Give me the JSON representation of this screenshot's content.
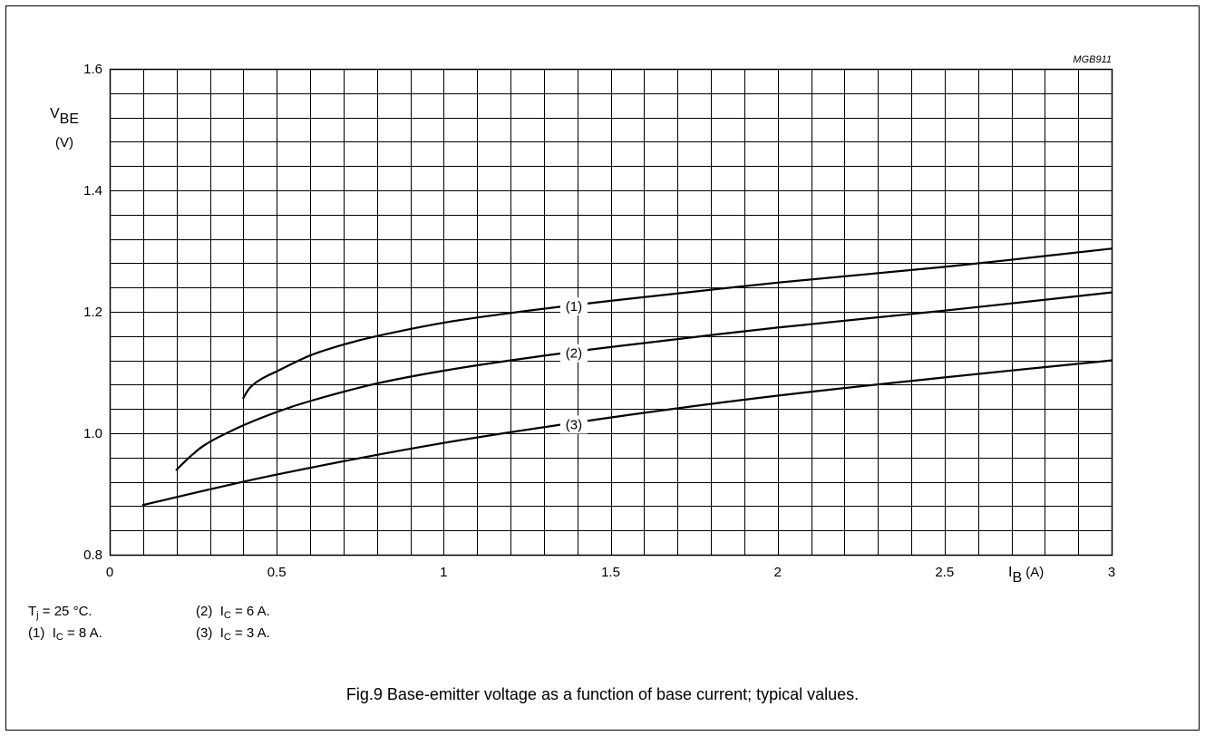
{
  "chart_data": {
    "type": "line",
    "figure_id": "MGB911",
    "x_axis": {
      "label_main": "I",
      "label_sub": "B",
      "label_unit": "(A)",
      "range": [
        0,
        3
      ],
      "ticks": [
        "0",
        "0.5",
        "1",
        "1.5",
        "2",
        "2.5",
        "3"
      ],
      "tick_values": [
        0,
        0.5,
        1,
        1.5,
        2,
        2.5,
        3
      ]
    },
    "y_axis": {
      "label_main": "V",
      "label_sub": "BE",
      "label_unit": "(V)",
      "range": [
        0.8,
        1.6
      ],
      "ticks": [
        "0.8",
        "1.0",
        "1.2",
        "1.4",
        "1.6"
      ],
      "tick_values": [
        0.8,
        1.0,
        1.2,
        1.4,
        1.6
      ]
    },
    "grid": true,
    "grid_x_step": 0.1,
    "grid_y_step": 0.04,
    "series": [
      {
        "name": "(1)",
        "x": [
          0.4,
          0.42,
          0.45,
          0.5,
          0.6,
          0.7,
          0.8,
          1.0,
          1.2,
          1.5,
          2.0,
          2.5,
          3.0
        ],
        "y": [
          1.058,
          1.075,
          1.088,
          1.102,
          1.128,
          1.146,
          1.16,
          1.182,
          1.198,
          1.218,
          1.248,
          1.274,
          1.304
        ]
      },
      {
        "name": "(2)",
        "x": [
          0.2,
          0.25,
          0.3,
          0.4,
          0.5,
          0.6,
          0.8,
          1.0,
          1.2,
          1.5,
          2.0,
          2.5,
          3.0
        ],
        "y": [
          0.94,
          0.966,
          0.986,
          1.013,
          1.035,
          1.053,
          1.082,
          1.103,
          1.12,
          1.142,
          1.174,
          1.202,
          1.232
        ]
      },
      {
        "name": "(3)",
        "x": [
          0.1,
          0.5,
          1.0,
          1.5,
          2.0,
          2.5,
          3.0
        ],
        "y": [
          0.882,
          0.932,
          0.984,
          1.026,
          1.062,
          1.092,
          1.12
        ]
      }
    ],
    "label_positions": [
      {
        "series": "(1)",
        "x": 1.36
      },
      {
        "series": "(2)",
        "x": 1.36
      },
      {
        "series": "(3)",
        "x": 1.36
      }
    ]
  },
  "notes": {
    "tj": {
      "main": "T",
      "sub": "j",
      "rest": " = 25 °C."
    },
    "n1": {
      "num": "(1)",
      "main": "I",
      "sub": "C",
      "rest": " = 8 A."
    },
    "n2": {
      "num": "(2)",
      "main": "I",
      "sub": "C",
      "rest": " = 6 A."
    },
    "n3": {
      "num": "(3)",
      "main": "I",
      "sub": "C",
      "rest": " = 3 A."
    }
  },
  "caption": "Fig.9  Base-emitter voltage as a function of base current; typical values."
}
